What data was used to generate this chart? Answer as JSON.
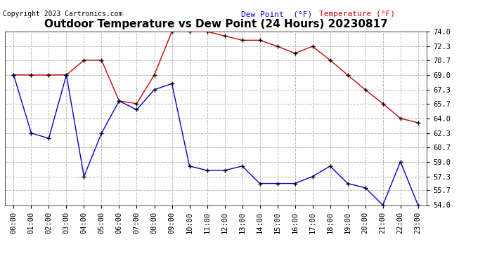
{
  "title": "Outdoor Temperature vs Dew Point (24 Hours) 20230817",
  "copyright": "Copyright 2023 Cartronics.com",
  "legend_dew": "Dew Point  (°F)",
  "legend_temp": "Temperature (°F)",
  "x_labels": [
    "00:00",
    "01:00",
    "02:00",
    "03:00",
    "04:00",
    "05:00",
    "06:00",
    "07:00",
    "08:00",
    "09:00",
    "10:00",
    "11:00",
    "12:00",
    "13:00",
    "14:00",
    "15:00",
    "16:00",
    "17:00",
    "18:00",
    "19:00",
    "20:00",
    "21:00",
    "22:00",
    "23:00"
  ],
  "temperature": [
    69.0,
    69.0,
    69.0,
    69.0,
    70.7,
    70.7,
    66.0,
    65.7,
    69.0,
    74.0,
    74.0,
    74.0,
    73.5,
    73.0,
    73.0,
    72.3,
    71.5,
    72.3,
    70.7,
    69.0,
    67.3,
    65.7,
    64.0,
    63.5
  ],
  "dew_point": [
    69.0,
    62.3,
    61.7,
    69.0,
    57.3,
    62.3,
    66.0,
    65.0,
    67.3,
    68.0,
    58.5,
    58.0,
    58.0,
    58.5,
    56.5,
    56.5,
    56.5,
    57.3,
    58.5,
    56.5,
    56.0,
    54.0,
    59.0,
    54.0
  ],
  "ylim_min": 54.0,
  "ylim_max": 74.0,
  "yticks": [
    54.0,
    55.7,
    57.3,
    59.0,
    60.7,
    62.3,
    64.0,
    65.7,
    67.3,
    69.0,
    70.7,
    72.3,
    74.0
  ],
  "temp_color": "#cc0000",
  "dew_color": "#0000cc",
  "grid_color": "#bbbbbb",
  "background_color": "#ffffff",
  "title_fontsize": 11,
  "tick_fontsize": 7.5,
  "copyright_fontsize": 7,
  "legend_fontsize": 8
}
